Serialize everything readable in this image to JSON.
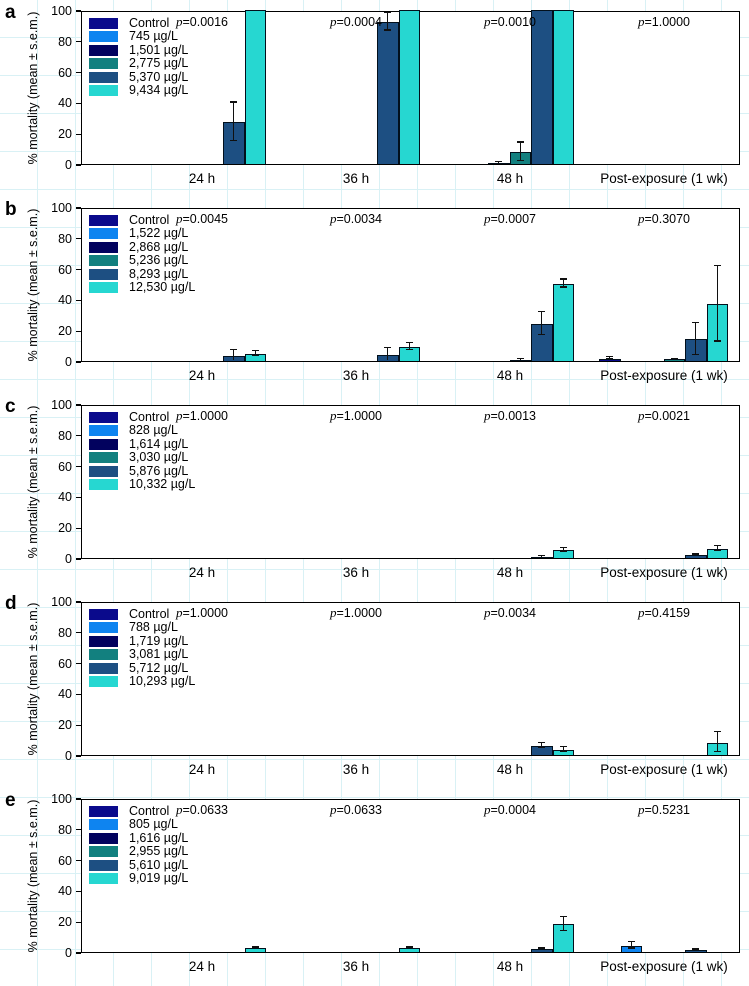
{
  "figure": {
    "background_grid_color": "#d9f1f5",
    "p_symbol": "p",
    "y_axis": {
      "title": "% mortality (mean ± s.e.m.)",
      "ticks": [
        0,
        20,
        40,
        60,
        80,
        100
      ],
      "min": 0,
      "max": 100
    },
    "x_categories": [
      "24 h",
      "36 h",
      "48 h",
      "Post-exposure (1 wk)"
    ],
    "series_colors": [
      "#0a0a8c",
      "#0e84f0",
      "#02025e",
      "#12807f",
      "#1d4f82",
      "#26d7d1"
    ]
  },
  "chart_data": [
    {
      "panel": "a",
      "type": "bar",
      "ylim": [
        0,
        100
      ],
      "legend_position": "top-left",
      "grid": false,
      "p_values": [
        "0.0016",
        "0.0004",
        "0.0010",
        "1.0000"
      ],
      "categories": [
        "24 h",
        "36 h",
        "48 h",
        "Post-exposure (1 wk)"
      ],
      "series": [
        {
          "name": "Control",
          "values": [
            0,
            0,
            0,
            0
          ],
          "errors": [
            0,
            0,
            0,
            0
          ]
        },
        {
          "name": "745 µg/L",
          "values": [
            0,
            0,
            0,
            0
          ],
          "errors": [
            0,
            0,
            0,
            0
          ]
        },
        {
          "name": "1,501 µg/L",
          "values": [
            0,
            0,
            0.5,
            0
          ],
          "errors": [
            0,
            0,
            1,
            0
          ]
        },
        {
          "name": "2,775 µg/L",
          "values": [
            0,
            0,
            7.5,
            0
          ],
          "errors": [
            0,
            0,
            6.5,
            0
          ]
        },
        {
          "name": "5,370 µg/L",
          "values": [
            27,
            92,
            100,
            0
          ],
          "errors": [
            13,
            6,
            0,
            0
          ]
        },
        {
          "name": "9,434 µg/L",
          "values": [
            100,
            100,
            100,
            0
          ],
          "errors": [
            0,
            0,
            0,
            0
          ]
        }
      ]
    },
    {
      "panel": "b",
      "type": "bar",
      "ylim": [
        0,
        100
      ],
      "legend_position": "top-left",
      "grid": false,
      "p_values": [
        "0.0045",
        "0.0034",
        "0.0007",
        "0.3070"
      ],
      "categories": [
        "24 h",
        "36 h",
        "48 h",
        "Post-exposure (1 wk)"
      ],
      "series": [
        {
          "name": "Control",
          "values": [
            0,
            0,
            0,
            1.5
          ],
          "errors": [
            0,
            0,
            0,
            1
          ]
        },
        {
          "name": "1,522 µg/L",
          "values": [
            0,
            0,
            0,
            0
          ],
          "errors": [
            0,
            0,
            0,
            0
          ]
        },
        {
          "name": "2,868 µg/L",
          "values": [
            0,
            0,
            0,
            0
          ],
          "errors": [
            0,
            0,
            0,
            0
          ]
        },
        {
          "name": "5,236 µg/L",
          "values": [
            0,
            0,
            0.5,
            1
          ],
          "errors": [
            0,
            0,
            0.7,
            0.5
          ]
        },
        {
          "name": "8,293 µg/L",
          "values": [
            3,
            4,
            24,
            14
          ],
          "errors": [
            4,
            4.5,
            8,
            11
          ]
        },
        {
          "name": "12,530 µg/L",
          "values": [
            4.5,
            9,
            50,
            37
          ],
          "errors": [
            2,
            2.5,
            3,
            25
          ]
        }
      ]
    },
    {
      "panel": "c",
      "type": "bar",
      "ylim": [
        0,
        100
      ],
      "legend_position": "top-left",
      "grid": false,
      "p_values": [
        "1.0000",
        "1.0000",
        "0.0013",
        "0.0021"
      ],
      "categories": [
        "24 h",
        "36 h",
        "48 h",
        "Post-exposure (1 wk)"
      ],
      "series": [
        {
          "name": "Control",
          "values": [
            0,
            0,
            0,
            0
          ],
          "errors": [
            0,
            0,
            0,
            0
          ]
        },
        {
          "name": "828 µg/L",
          "values": [
            0,
            0,
            0,
            0
          ],
          "errors": [
            0,
            0,
            0,
            0
          ]
        },
        {
          "name": "1,614 µg/L",
          "values": [
            0,
            0,
            0,
            0
          ],
          "errors": [
            0,
            0,
            0,
            0
          ]
        },
        {
          "name": "3,030 µg/L",
          "values": [
            0,
            0,
            0,
            0
          ],
          "errors": [
            0,
            0,
            0,
            0
          ]
        },
        {
          "name": "5,876 µg/L",
          "values": [
            0,
            0,
            0.5,
            2
          ],
          "errors": [
            0,
            0,
            0.7,
            0.5
          ]
        },
        {
          "name": "10,332 µg/L",
          "values": [
            0,
            0,
            5,
            6
          ],
          "errors": [
            0,
            0,
            1.5,
            2
          ]
        }
      ]
    },
    {
      "panel": "d",
      "type": "bar",
      "ylim": [
        0,
        100
      ],
      "legend_position": "top-left",
      "grid": false,
      "p_values": [
        "1.0000",
        "1.0000",
        "0.0034",
        "0.4159"
      ],
      "categories": [
        "24 h",
        "36 h",
        "48 h",
        "Post-exposure (1 wk)"
      ],
      "series": [
        {
          "name": "Control",
          "values": [
            0,
            0,
            0,
            0
          ],
          "errors": [
            0,
            0,
            0,
            0
          ]
        },
        {
          "name": "788 µg/L",
          "values": [
            0,
            0,
            0,
            0
          ],
          "errors": [
            0,
            0,
            0,
            0
          ]
        },
        {
          "name": "1,719 µg/L",
          "values": [
            0,
            0,
            0,
            0
          ],
          "errors": [
            0,
            0,
            0,
            0
          ]
        },
        {
          "name": "3,081 µg/L",
          "values": [
            0,
            0,
            0,
            0
          ],
          "errors": [
            0,
            0,
            0,
            0
          ]
        },
        {
          "name": "5,712 µg/L",
          "values": [
            0,
            0,
            6,
            0
          ],
          "errors": [
            0,
            0,
            2,
            0
          ]
        },
        {
          "name": "10,293 µg/L",
          "values": [
            0,
            0,
            3,
            8
          ],
          "errors": [
            0,
            0,
            2,
            7
          ]
        }
      ]
    },
    {
      "panel": "e",
      "type": "bar",
      "ylim": [
        0,
        100
      ],
      "legend_position": "top-left",
      "grid": false,
      "p_values": [
        "0.0633",
        "0.0633",
        "0.0004",
        "0.5231"
      ],
      "categories": [
        "24 h",
        "36 h",
        "48 h",
        "Post-exposure (1 wk)"
      ],
      "series": [
        {
          "name": "Control",
          "values": [
            0,
            0,
            0,
            0
          ],
          "errors": [
            0,
            0,
            0,
            0
          ]
        },
        {
          "name": "805 µg/L",
          "values": [
            0,
            0,
            0,
            4
          ],
          "errors": [
            0,
            0,
            0,
            2.5
          ]
        },
        {
          "name": "1,616 µg/L",
          "values": [
            0,
            0,
            0,
            0
          ],
          "errors": [
            0,
            0,
            0,
            0
          ]
        },
        {
          "name": "2,955 µg/L",
          "values": [
            0,
            0,
            0,
            0
          ],
          "errors": [
            0,
            0,
            0,
            0
          ]
        },
        {
          "name": "5,610 µg/L",
          "values": [
            0,
            0,
            2,
            1.5
          ],
          "errors": [
            0,
            0,
            0.7,
            0.7
          ]
        },
        {
          "name": "9,019 µg/L",
          "values": [
            2.5,
            2.5,
            18,
            0
          ],
          "errors": [
            0.7,
            0.7,
            5,
            0
          ]
        }
      ]
    }
  ]
}
